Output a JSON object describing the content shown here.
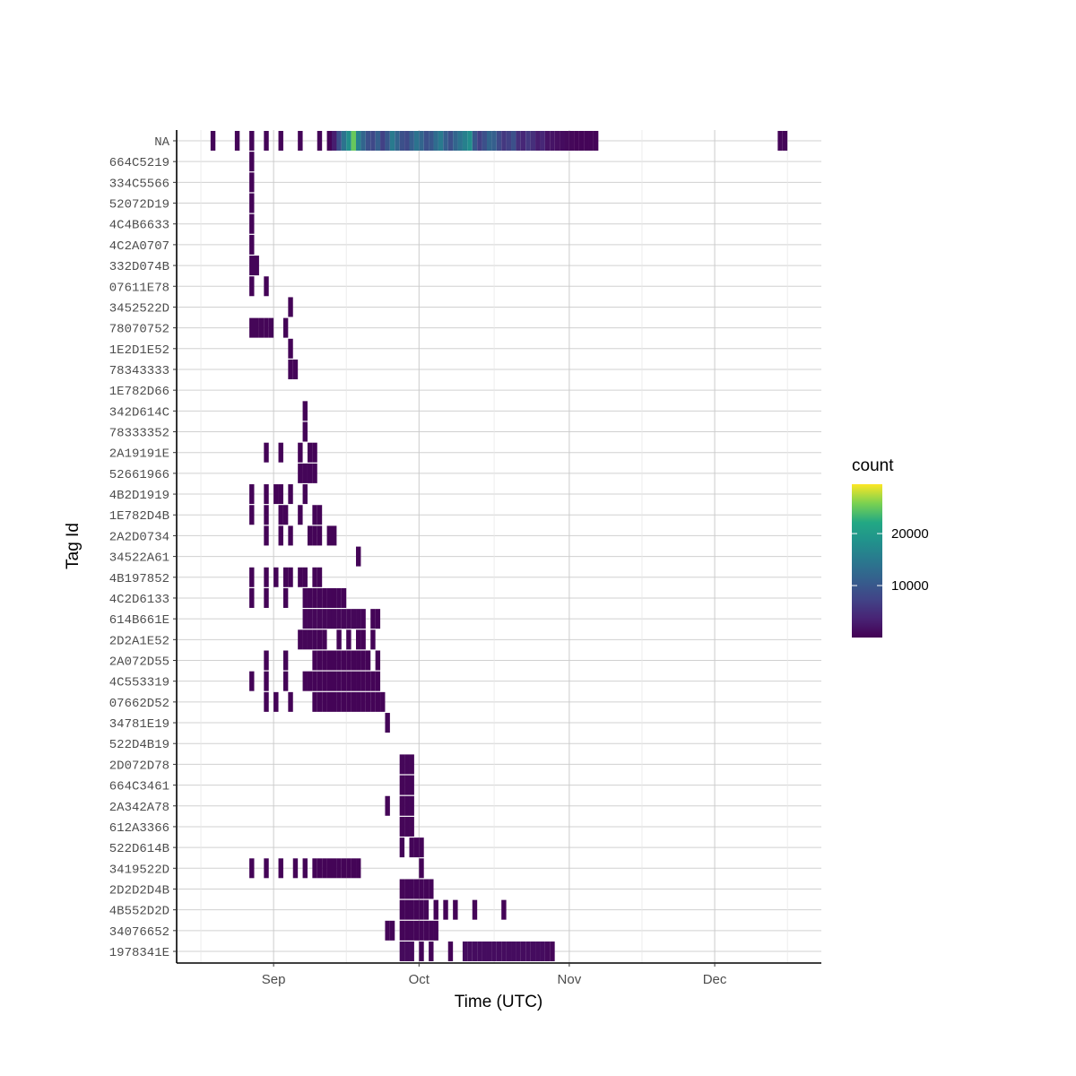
{
  "chart_data": {
    "type": "heatmap",
    "xlabel": "Time (UTC)",
    "ylabel": "Tag Id",
    "x_ticks": [
      "Sep",
      "Oct",
      "Nov",
      "Dec"
    ],
    "x_tick_dates": [
      "2023-09-01",
      "2023-10-01",
      "2023-11-01",
      "2023-12-01"
    ],
    "xlim": [
      "2023-08-12",
      "2023-12-23"
    ],
    "grid": true,
    "legend": {
      "title": "count",
      "ticks": [
        10000,
        20000
      ],
      "min": 500,
      "max": 29500,
      "position": "right",
      "colormap": "viridis"
    },
    "tags": [
      "NA",
      "664C5219",
      "334C5566",
      "52072D19",
      "4C4B6633",
      "4C2A0707",
      "332D074B",
      "07611E78",
      "3452522D",
      "78070752",
      "1E2D1E52",
      "78343333",
      "1E782D66",
      "342D614C",
      "78333352",
      "2A19191E",
      "52661966",
      "4B2D1919",
      "1E782D4B",
      "2A2D0734",
      "34522A61",
      "4B197852",
      "4C2D6133",
      "614B661E",
      "2D2A1E52",
      "2A072D55",
      "4C553319",
      "07662D52",
      "34781E19",
      "522D4B19",
      "2D072D78",
      "664C3461",
      "2A342A78",
      "612A3366",
      "522D614B",
      "3419522D",
      "2D2D2D4B",
      "4B552D2D",
      "34076652",
      "1978341E"
    ],
    "cells": [
      {
        "tag": "NA",
        "x": [
          "2023-08-19",
          "2023-08-24",
          "2023-08-27",
          "2023-08-30",
          "2023-09-02",
          "2023-09-06",
          "2023-09-10",
          "2023-09-12",
          "2023-09-13"
        ],
        "count": [
          400,
          400,
          400,
          400,
          400,
          400,
          400,
          400,
          400
        ]
      },
      {
        "tag": "NA",
        "x": [
          "2023-09-13",
          "2023-09-14",
          "2023-09-15",
          "2023-09-16",
          "2023-09-17",
          "2023-09-18",
          "2023-09-19",
          "2023-09-20",
          "2023-09-21",
          "2023-09-22",
          "2023-09-23",
          "2023-09-24",
          "2023-09-25",
          "2023-09-26",
          "2023-09-27",
          "2023-09-28",
          "2023-09-29",
          "2023-09-30",
          "2023-10-01",
          "2023-10-02",
          "2023-10-03",
          "2023-10-04",
          "2023-10-05",
          "2023-10-06",
          "2023-10-07",
          "2023-10-08",
          "2023-10-09",
          "2023-10-10",
          "2023-10-11",
          "2023-10-12",
          "2023-10-13",
          "2023-10-14",
          "2023-10-15",
          "2023-10-16",
          "2023-10-17",
          "2023-10-18",
          "2023-10-19",
          "2023-10-20",
          "2023-10-21",
          "2023-10-22",
          "2023-10-23",
          "2023-10-24",
          "2023-10-25",
          "2023-10-26",
          "2023-10-27",
          "2023-10-28",
          "2023-10-29",
          "2023-10-30",
          "2023-10-31",
          "2023-11-01",
          "2023-11-02"
        ],
        "count": [
          3000,
          9000,
          14000,
          18000,
          25000,
          16000,
          12000,
          9000,
          8000,
          11000,
          7000,
          10000,
          15000,
          12000,
          9000,
          8000,
          11000,
          14000,
          12000,
          9000,
          10000,
          13000,
          15000,
          11000,
          9000,
          12000,
          14000,
          16000,
          18000,
          10000,
          7000,
          9000,
          12000,
          11000,
          8000,
          6000,
          7000,
          9000,
          5000,
          4000,
          6000,
          5000,
          3000,
          4000,
          2000,
          2000,
          1500,
          1200,
          900,
          700,
          500
        ]
      },
      {
        "tag": "NA",
        "x": [
          "2023-11-02",
          "2023-11-03",
          "2023-11-04",
          "2023-11-05",
          "2023-11-06",
          "2023-12-14",
          "2023-12-15"
        ],
        "count": [
          400,
          400,
          400,
          400,
          400,
          400,
          400
        ]
      },
      {
        "tag": "664C5219",
        "x": [
          "2023-08-27"
        ],
        "count": [
          300
        ]
      },
      {
        "tag": "334C5566",
        "x": [
          "2023-08-27"
        ],
        "count": [
          300
        ]
      },
      {
        "tag": "52072D19",
        "x": [
          "2023-08-27"
        ],
        "count": [
          300
        ]
      },
      {
        "tag": "4C4B6633",
        "x": [
          "2023-08-27"
        ],
        "count": [
          300
        ]
      },
      {
        "tag": "4C2A0707",
        "x": [
          "2023-08-27"
        ],
        "count": [
          300
        ]
      },
      {
        "tag": "332D074B",
        "x": [
          "2023-08-27",
          "2023-08-28"
        ],
        "count": [
          400,
          400
        ]
      },
      {
        "tag": "07611E78",
        "x": [
          "2023-08-27",
          "2023-08-30"
        ],
        "count": [
          300,
          300
        ]
      },
      {
        "tag": "3452522D",
        "x": [
          "2023-09-04"
        ],
        "count": [
          300
        ]
      },
      {
        "tag": "78070752",
        "x": [
          "2023-08-27",
          "2023-08-28",
          "2023-08-29",
          "2023-08-30",
          "2023-08-31",
          "2023-09-03"
        ],
        "count": [
          500,
          500,
          500,
          500,
          400,
          300
        ]
      },
      {
        "tag": "1E2D1E52",
        "x": [
          "2023-09-04"
        ],
        "count": [
          300
        ]
      },
      {
        "tag": "78343333",
        "x": [
          "2023-09-04",
          "2023-09-05"
        ],
        "count": [
          400,
          400
        ]
      },
      {
        "tag": "1E782D66",
        "x": [],
        "count": []
      },
      {
        "tag": "342D614C",
        "x": [
          "2023-09-07"
        ],
        "count": [
          300
        ]
      },
      {
        "tag": "78333352",
        "x": [
          "2023-09-07"
        ],
        "count": [
          300
        ]
      },
      {
        "tag": "2A19191E",
        "x": [
          "2023-08-30",
          "2023-09-02",
          "2023-09-06",
          "2023-09-08",
          "2023-09-09"
        ],
        "count": [
          300,
          300,
          300,
          300,
          300
        ]
      },
      {
        "tag": "52661966",
        "x": [
          "2023-09-06",
          "2023-09-07",
          "2023-09-08",
          "2023-09-09"
        ],
        "count": [
          400,
          400,
          400,
          400
        ]
      },
      {
        "tag": "4B2D1919",
        "x": [
          "2023-08-27",
          "2023-08-30",
          "2023-09-01",
          "2023-09-02",
          "2023-09-04",
          "2023-09-07"
        ],
        "count": [
          300,
          300,
          300,
          300,
          300,
          300
        ]
      },
      {
        "tag": "1E782D4B",
        "x": [
          "2023-08-27",
          "2023-08-30",
          "2023-09-02",
          "2023-09-03",
          "2023-09-06",
          "2023-09-09",
          "2023-09-10"
        ],
        "count": [
          300,
          300,
          300,
          300,
          300,
          300,
          300
        ]
      },
      {
        "tag": "2A2D0734",
        "x": [
          "2023-08-30",
          "2023-09-02",
          "2023-09-04",
          "2023-09-08",
          "2023-09-09",
          "2023-09-10",
          "2023-09-12",
          "2023-09-13"
        ],
        "count": [
          300,
          300,
          300,
          300,
          300,
          300,
          300,
          300
        ]
      },
      {
        "tag": "34522A61",
        "x": [
          "2023-09-18"
        ],
        "count": [
          300
        ]
      },
      {
        "tag": "4B197852",
        "x": [
          "2023-08-27",
          "2023-08-30",
          "2023-09-01",
          "2023-09-03",
          "2023-09-04",
          "2023-09-06",
          "2023-09-07",
          "2023-09-09",
          "2023-09-10"
        ],
        "count": [
          300,
          300,
          300,
          300,
          300,
          300,
          300,
          300,
          300
        ]
      },
      {
        "tag": "4C2D6133",
        "x": [
          "2023-08-27",
          "2023-08-30",
          "2023-09-03",
          "2023-09-07",
          "2023-09-08",
          "2023-09-09",
          "2023-09-10",
          "2023-09-11",
          "2023-09-12",
          "2023-09-13",
          "2023-09-14",
          "2023-09-15"
        ],
        "count": [
          300,
          300,
          300,
          400,
          400,
          300,
          400,
          300,
          400,
          300,
          400,
          300
        ]
      },
      {
        "tag": "614B661E",
        "x": [
          "2023-09-07",
          "2023-09-08",
          "2023-09-09",
          "2023-09-10",
          "2023-09-11",
          "2023-09-12",
          "2023-09-13",
          "2023-09-14",
          "2023-09-15",
          "2023-09-16",
          "2023-09-17",
          "2023-09-18",
          "2023-09-19",
          "2023-09-21",
          "2023-09-22"
        ],
        "count": [
          600,
          600,
          600,
          600,
          600,
          600,
          600,
          600,
          600,
          600,
          600,
          600,
          400,
          300,
          300
        ]
      },
      {
        "tag": "2D2A1E52",
        "x": [
          "2023-09-06",
          "2023-09-07",
          "2023-09-08",
          "2023-09-09",
          "2023-09-10",
          "2023-09-11",
          "2023-09-14",
          "2023-09-16",
          "2023-09-18",
          "2023-09-19",
          "2023-09-21"
        ],
        "count": [
          500,
          500,
          500,
          400,
          300,
          300,
          300,
          300,
          300,
          300,
          300
        ]
      },
      {
        "tag": "2A072D55",
        "x": [
          "2023-08-30",
          "2023-09-03",
          "2023-09-09",
          "2023-09-10",
          "2023-09-11",
          "2023-09-12",
          "2023-09-13",
          "2023-09-14",
          "2023-09-15",
          "2023-09-16",
          "2023-09-17",
          "2023-09-18",
          "2023-09-19",
          "2023-09-20",
          "2023-09-22"
        ],
        "count": [
          300,
          300,
          300,
          300,
          300,
          300,
          300,
          300,
          300,
          300,
          300,
          300,
          300,
          300,
          300
        ]
      },
      {
        "tag": "4C553319",
        "x": [
          "2023-08-27",
          "2023-08-30",
          "2023-09-03",
          "2023-09-07",
          "2023-09-08",
          "2023-09-09",
          "2023-09-10",
          "2023-09-11",
          "2023-09-12",
          "2023-09-13",
          "2023-09-14",
          "2023-09-15",
          "2023-09-16",
          "2023-09-17",
          "2023-09-18",
          "2023-09-19",
          "2023-09-20",
          "2023-09-21",
          "2023-09-22"
        ],
        "count": [
          300,
          300,
          300,
          300,
          300,
          300,
          300,
          300,
          300,
          300,
          300,
          300,
          300,
          300,
          300,
          300,
          300,
          300,
          300
        ]
      },
      {
        "tag": "07662D52",
        "x": [
          "2023-08-30",
          "2023-09-01",
          "2023-09-04",
          "2023-09-09",
          "2023-09-10",
          "2023-09-11",
          "2023-09-12",
          "2023-09-13",
          "2023-09-14",
          "2023-09-15",
          "2023-09-16",
          "2023-09-17",
          "2023-09-18",
          "2023-09-19",
          "2023-09-20",
          "2023-09-21",
          "2023-09-22",
          "2023-09-23"
        ],
        "count": [
          300,
          300,
          300,
          300,
          300,
          300,
          300,
          300,
          300,
          300,
          300,
          300,
          300,
          300,
          300,
          300,
          300,
          300
        ]
      },
      {
        "tag": "34781E19",
        "x": [
          "2023-09-24"
        ],
        "count": [
          400
        ]
      },
      {
        "tag": "522D4B19",
        "x": [],
        "count": []
      },
      {
        "tag": "2D072D78",
        "x": [
          "2023-09-27",
          "2023-09-28",
          "2023-09-29"
        ],
        "count": [
          600,
          600,
          500
        ]
      },
      {
        "tag": "664C3461",
        "x": [
          "2023-09-27",
          "2023-09-28",
          "2023-09-29"
        ],
        "count": [
          500,
          500,
          400
        ]
      },
      {
        "tag": "2A342A78",
        "x": [
          "2023-09-24",
          "2023-09-27",
          "2023-09-28",
          "2023-09-29"
        ],
        "count": [
          500,
          500,
          400,
          400
        ]
      },
      {
        "tag": "612A3366",
        "x": [
          "2023-09-27",
          "2023-09-28",
          "2023-09-29"
        ],
        "count": [
          500,
          500,
          500
        ]
      },
      {
        "tag": "522D614B",
        "x": [
          "2023-09-27",
          "2023-09-29",
          "2023-09-30",
          "2023-10-01"
        ],
        "count": [
          400,
          400,
          400,
          400
        ]
      },
      {
        "tag": "3419522D",
        "x": [
          "2023-08-27",
          "2023-08-30",
          "2023-09-02",
          "2023-09-05",
          "2023-09-07",
          "2023-09-09",
          "2023-09-10",
          "2023-09-11",
          "2023-09-12",
          "2023-09-13",
          "2023-09-14",
          "2023-09-15",
          "2023-09-16",
          "2023-09-17",
          "2023-09-18",
          "2023-10-01"
        ],
        "count": [
          300,
          300,
          300,
          300,
          300,
          300,
          300,
          300,
          300,
          300,
          300,
          300,
          300,
          300,
          300,
          300
        ]
      },
      {
        "tag": "2D2D2D4B",
        "x": [
          "2023-09-27",
          "2023-09-28",
          "2023-09-29",
          "2023-09-30",
          "2023-10-01",
          "2023-10-02",
          "2023-10-03"
        ],
        "count": [
          500,
          400,
          400,
          400,
          400,
          400,
          400
        ]
      },
      {
        "tag": "4B552D2D",
        "x": [
          "2023-09-27",
          "2023-09-28",
          "2023-09-29",
          "2023-09-30",
          "2023-10-01",
          "2023-10-02",
          "2023-10-04",
          "2023-10-06",
          "2023-10-08",
          "2023-10-12",
          "2023-10-18"
        ],
        "count": [
          400,
          400,
          400,
          400,
          400,
          400,
          300,
          300,
          300,
          500,
          300
        ]
      },
      {
        "tag": "34076652",
        "x": [
          "2023-09-24",
          "2023-09-25",
          "2023-09-27",
          "2023-09-28",
          "2023-09-29",
          "2023-09-30",
          "2023-10-01",
          "2023-10-02",
          "2023-10-03",
          "2023-10-04"
        ],
        "count": [
          500,
          400,
          400,
          400,
          400,
          400,
          400,
          400,
          400,
          400
        ]
      },
      {
        "tag": "1978341E",
        "x": [
          "2023-09-27",
          "2023-09-28",
          "2023-09-29",
          "2023-10-01",
          "2023-10-03",
          "2023-10-07",
          "2023-10-10",
          "2023-10-11",
          "2023-10-12",
          "2023-10-13",
          "2023-10-14",
          "2023-10-15",
          "2023-10-16",
          "2023-10-17",
          "2023-10-18",
          "2023-10-19",
          "2023-10-20",
          "2023-10-21",
          "2023-10-22",
          "2023-10-23",
          "2023-10-24",
          "2023-10-25",
          "2023-10-26",
          "2023-10-27",
          "2023-10-28"
        ],
        "count": [
          900,
          900,
          900,
          400,
          400,
          300,
          1200,
          1200,
          1200,
          1200,
          1200,
          1200,
          1200,
          1200,
          1200,
          1200,
          1200,
          1200,
          1200,
          1200,
          1200,
          1200,
          1200,
          900,
          600
        ]
      }
    ]
  }
}
